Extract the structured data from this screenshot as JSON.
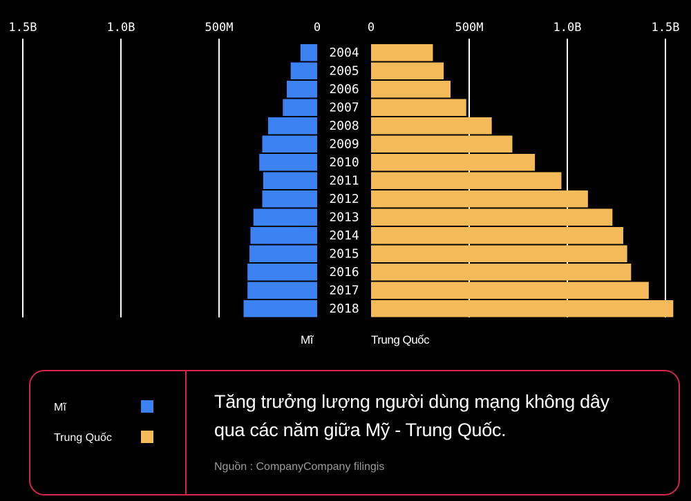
{
  "chart_data": {
    "type": "bar",
    "orientation": "horizontal",
    "layout": "back-to-back",
    "categories": [
      "2004",
      "2005",
      "2006",
      "2007",
      "2008",
      "2009",
      "2010",
      "2011",
      "2012",
      "2013",
      "2014",
      "2015",
      "2016",
      "2017",
      "2018"
    ],
    "series": [
      {
        "name": "Mĩ",
        "color": "#3d82f2",
        "side": "left",
        "values": [
          85,
          135,
          155,
          175,
          250,
          280,
          295,
          275,
          280,
          325,
          340,
          345,
          355,
          355,
          375
        ]
      },
      {
        "name": "Trung Quốc",
        "color": "#f5bb5a",
        "side": "right",
        "values": [
          315,
          370,
          405,
          485,
          615,
          720,
          835,
          970,
          1105,
          1230,
          1285,
          1305,
          1325,
          1415,
          1540
        ]
      }
    ],
    "left_ticks": [
      "1.5B",
      "1.0B",
      "500M",
      "0"
    ],
    "right_ticks": [
      "0",
      "500M",
      "1.0B",
      "1.5B"
    ],
    "tick_values": [
      1500,
      1000,
      500,
      0
    ],
    "unit": "millions of users",
    "xlim": [
      0,
      1500
    ],
    "grid": true
  },
  "axis_names": {
    "left": "Mĩ",
    "right": "Trung Quốc"
  },
  "legend": {
    "items": [
      {
        "label": "Mĩ",
        "color": "#3d82f2"
      },
      {
        "label": "Trung Quốc",
        "color": "#f5bb5a"
      }
    ]
  },
  "caption": {
    "line1": "Tăng trưởng lượng người dùng mạng không dây",
    "line2": "qua các năm giữa Mỹ - Trung Quốc."
  },
  "source": "Nguồn : CompanyCompany filingis"
}
